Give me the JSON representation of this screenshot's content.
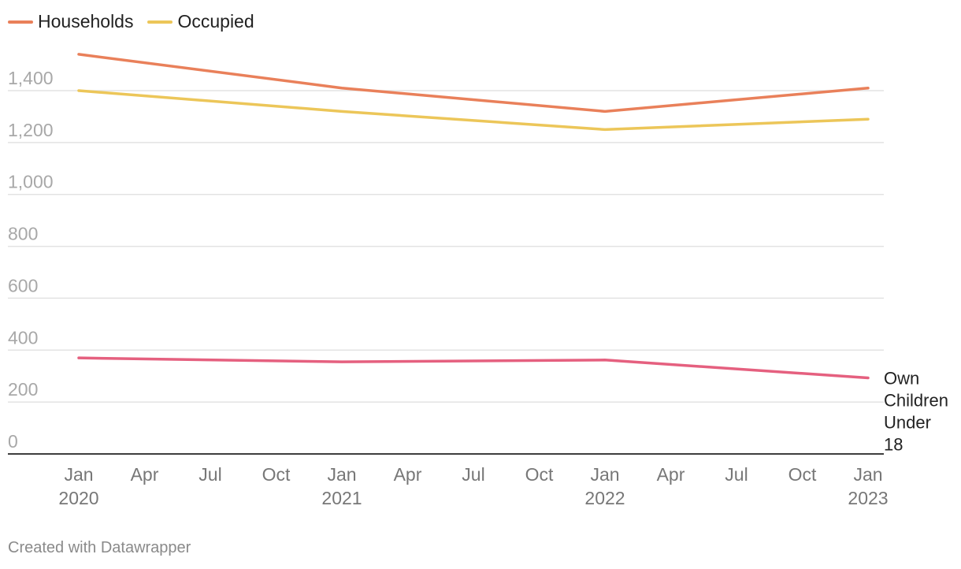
{
  "chart_data": {
    "type": "line",
    "title": "",
    "xlabel": "",
    "ylabel": "",
    "ylim": [
      0,
      1400
    ],
    "y_ticks": [
      0,
      200,
      400,
      600,
      800,
      1000,
      1200,
      1400
    ],
    "y_tick_labels": [
      "0",
      "200",
      "400",
      "600",
      "800",
      "1,000",
      "1,200",
      "1,400"
    ],
    "x_ticks": [
      {
        "line1": "Jan",
        "line2": "2020"
      },
      {
        "line1": "Apr",
        "line2": ""
      },
      {
        "line1": "Jul",
        "line2": ""
      },
      {
        "line1": "Oct",
        "line2": ""
      },
      {
        "line1": "Jan",
        "line2": "2021"
      },
      {
        "line1": "Apr",
        "line2": ""
      },
      {
        "line1": "Jul",
        "line2": ""
      },
      {
        "line1": "Oct",
        "line2": ""
      },
      {
        "line1": "Jan",
        "line2": "2022"
      },
      {
        "line1": "Apr",
        "line2": ""
      },
      {
        "line1": "Jul",
        "line2": ""
      },
      {
        "line1": "Oct",
        "line2": ""
      },
      {
        "line1": "Jan",
        "line2": "2023"
      }
    ],
    "x": [
      "2020",
      "2021",
      "2022",
      "2023"
    ],
    "series": [
      {
        "name": "Households",
        "color": "#e9805a",
        "values": [
          1540,
          1410,
          1320,
          1410
        ]
      },
      {
        "name": "Occupied",
        "color": "#ecc659",
        "values": [
          1400,
          1320,
          1250,
          1290
        ]
      },
      {
        "name": "Own Children Under 18",
        "color": "#e5607f",
        "values": [
          370,
          355,
          362,
          293
        ],
        "label_lines": [
          "Own",
          "Children",
          "Under",
          "18"
        ]
      }
    ],
    "legend": [
      "Households",
      "Occupied"
    ]
  },
  "credit": "Created with Datawrapper"
}
